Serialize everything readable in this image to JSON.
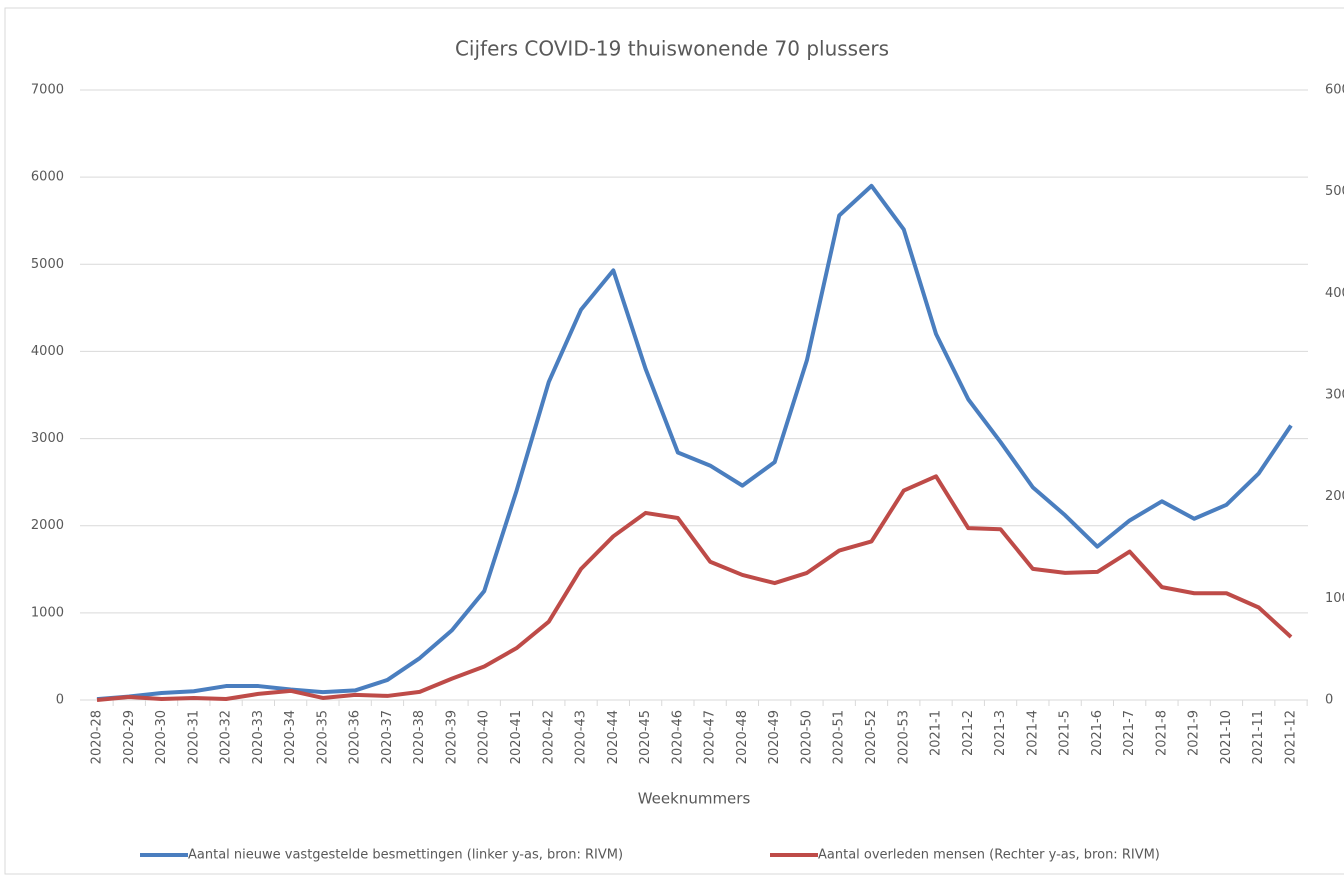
{
  "chart_data": {
    "type": "line",
    "title": "Cijfers COVID-19 thuiswonende 70 plussers",
    "x_label": "Weeknummers",
    "categories": [
      "2020-28",
      "2020-29",
      "2020-30",
      "2020-31",
      "2020-32",
      "2020-33",
      "2020-34",
      "2020-35",
      "2020-36",
      "2020-37",
      "2020-38",
      "2020-39",
      "2020-40",
      "2020-41",
      "2020-42",
      "2020-43",
      "2020-44",
      "2020-45",
      "2020-46",
      "2020-47",
      "2020-48",
      "2020-49",
      "2020-50",
      "2020-51",
      "2020-52",
      "2020-53",
      "2021-1",
      "2021-2",
      "2021-3",
      "2021-4",
      "2021-5",
      "2021-6",
      "2021-7",
      "2021-8",
      "2021-9",
      "2021-10",
      "2021-11",
      "2021-12"
    ],
    "series": [
      {
        "name": "Aantal nieuwe vastgestelde besmettingen (linker y-as, bron: RIVM)",
        "color": "#4a7ebf",
        "axis": "y",
        "values": [
          10,
          40,
          80,
          100,
          160,
          160,
          120,
          90,
          110,
          230,
          480,
          800,
          1250,
          2400,
          3650,
          4480,
          4930,
          3800,
          2840,
          2690,
          2460,
          2730,
          3900,
          5560,
          5900,
          5400,
          4200,
          3450,
          2960,
          2440,
          2120,
          1760,
          2060,
          2280,
          2080,
          2240,
          2600,
          3150
        ]
      },
      {
        "name": "Aantal overleden mensen (Rechter y-as, bron: RIVM)",
        "color": "#be4b48",
        "axis": "y2",
        "values": [
          0,
          3,
          1,
          2,
          1,
          6,
          9,
          2,
          5,
          4,
          8,
          21,
          33,
          51,
          77,
          129,
          161,
          184,
          179,
          136,
          123,
          115,
          125,
          147,
          156,
          206,
          220,
          169,
          168,
          129,
          125,
          126,
          146,
          111,
          105,
          105,
          91,
          62
        ]
      }
    ],
    "ylim": [
      0,
      7000
    ],
    "yticks": [
      0,
      1000,
      2000,
      3000,
      4000,
      5000,
      6000,
      7000
    ],
    "y2lim": [
      0,
      600
    ],
    "y2ticks": [
      0,
      100,
      200,
      300,
      400,
      500,
      600
    ],
    "grid": true,
    "legend": "bottom"
  }
}
